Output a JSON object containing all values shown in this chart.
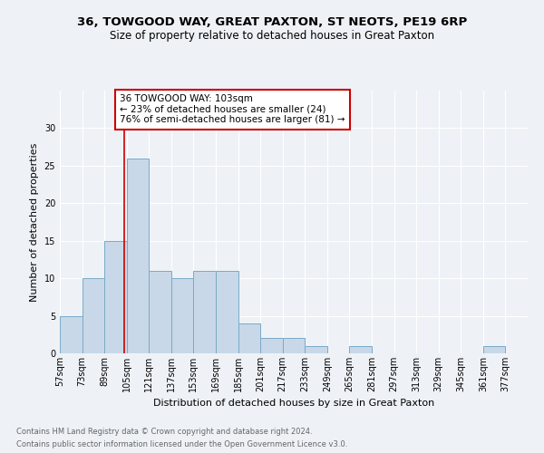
{
  "title": "36, TOWGOOD WAY, GREAT PAXTON, ST NEOTS, PE19 6RP",
  "subtitle": "Size of property relative to detached houses in Great Paxton",
  "xlabel": "Distribution of detached houses by size in Great Paxton",
  "ylabel": "Number of detached properties",
  "footnote1": "Contains HM Land Registry data © Crown copyright and database right 2024.",
  "footnote2": "Contains public sector information licensed under the Open Government Licence v3.0.",
  "annotation_line1": "36 TOWGOOD WAY: 103sqm",
  "annotation_line2": "← 23% of detached houses are smaller (24)",
  "annotation_line3": "76% of semi-detached houses are larger (81) →",
  "bar_left_edges": [
    57,
    73,
    89,
    105,
    121,
    137,
    153,
    169,
    185,
    201,
    217,
    233,
    249,
    265,
    281,
    297,
    313,
    329,
    345,
    361
  ],
  "bar_heights": [
    5,
    10,
    15,
    26,
    11,
    10,
    11,
    11,
    4,
    2,
    2,
    1,
    0,
    1,
    0,
    0,
    0,
    0,
    0,
    1
  ],
  "bin_width": 16,
  "bar_color": "#c8d8e8",
  "bar_edge_color": "#7aaac8",
  "vline_color": "#cc0000",
  "vline_x": 103,
  "annotation_box_color": "#cc0000",
  "ylim": [
    0,
    35
  ],
  "yticks": [
    0,
    5,
    10,
    15,
    20,
    25,
    30
  ],
  "x_labels": [
    "57sqm",
    "73sqm",
    "89sqm",
    "105sqm",
    "121sqm",
    "137sqm",
    "153sqm",
    "169sqm",
    "185sqm",
    "201sqm",
    "217sqm",
    "233sqm",
    "249sqm",
    "265sqm",
    "281sqm",
    "297sqm",
    "313sqm",
    "329sqm",
    "345sqm",
    "361sqm",
    "377sqm"
  ],
  "x_tick_positions": [
    57,
    73,
    89,
    105,
    121,
    137,
    153,
    169,
    185,
    201,
    217,
    233,
    249,
    265,
    281,
    297,
    313,
    329,
    345,
    361,
    377
  ],
  "xlim_min": 57,
  "xlim_max": 393,
  "background_color": "#eef2f7",
  "grid_color": "#ffffff",
  "title_fontsize": 9.5,
  "subtitle_fontsize": 8.5,
  "axis_label_fontsize": 8,
  "tick_fontsize": 7,
  "annotation_fontsize": 7.5,
  "footnote_fontsize": 6,
  "footnote_color": "#666666"
}
